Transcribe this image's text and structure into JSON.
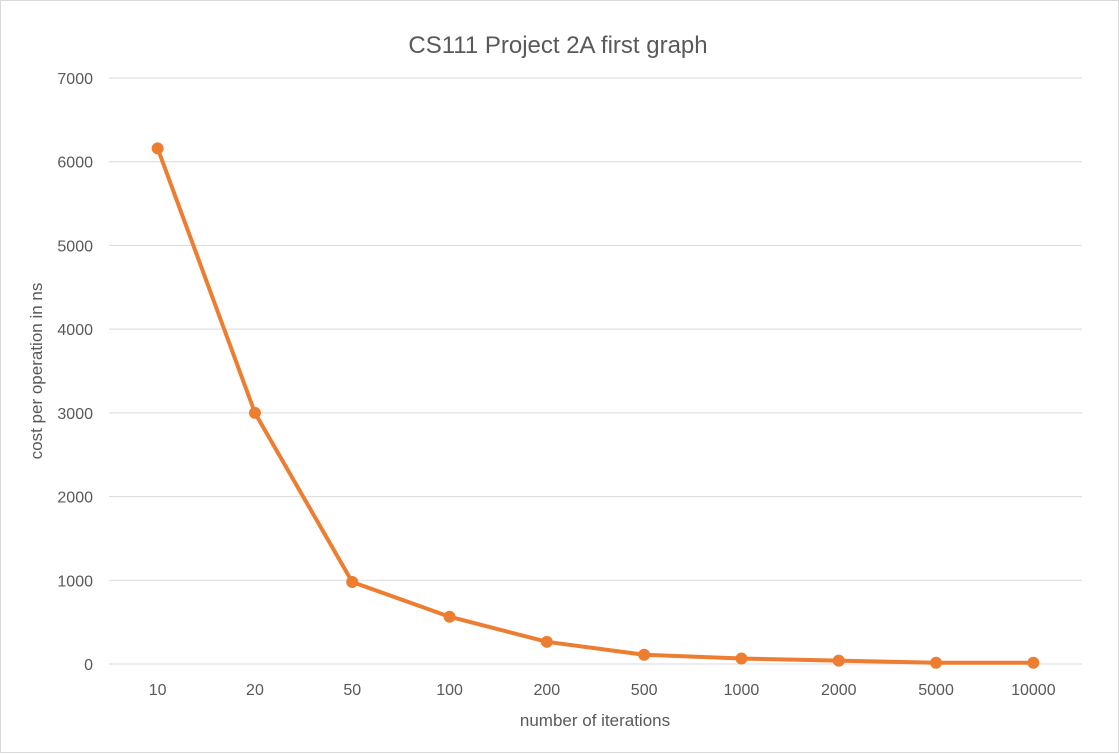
{
  "chart_data": {
    "type": "line",
    "title": "CS111 Project 2A first graph",
    "xlabel": "number of iterations",
    "ylabel": "cost per operation in ns",
    "categories": [
      "10",
      "20",
      "50",
      "100",
      "200",
      "500",
      "1000",
      "2000",
      "5000",
      "10000"
    ],
    "series": [
      {
        "values": [
          6160,
          3000,
          980,
          565,
          265,
          110,
          65,
          40,
          15,
          15
        ]
      }
    ],
    "ylim": [
      0,
      7000
    ],
    "yticks": [
      0,
      1000,
      2000,
      3000,
      4000,
      5000,
      6000,
      7000
    ],
    "grid": true,
    "legend": "none",
    "colors": {
      "series": "#ed7d31",
      "grid": "#d9d9d9",
      "text": "#595959"
    }
  }
}
